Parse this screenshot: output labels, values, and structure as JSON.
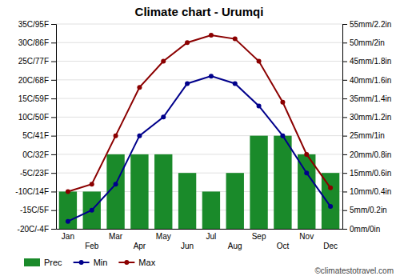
{
  "chart_data": {
    "type": "bar",
    "title": "Climate chart - Urumqi",
    "categories": [
      "Jan",
      "Feb",
      "Mar",
      "Apr",
      "May",
      "Jun",
      "Jul",
      "Aug",
      "Sep",
      "Oct",
      "Nov",
      "Dec"
    ],
    "series": [
      {
        "name": "Prec",
        "type": "bar",
        "axis": "y2",
        "color": "#1a8a2a",
        "values": [
          10,
          10,
          20,
          20,
          20,
          15,
          10,
          15,
          25,
          25,
          20,
          15
        ]
      },
      {
        "name": "Min",
        "type": "line",
        "marker": "circle",
        "color": "#00008b",
        "values": [
          -18,
          -15,
          -8,
          5,
          10,
          19,
          21,
          19,
          13,
          5,
          -5,
          -14
        ]
      },
      {
        "name": "Max",
        "type": "line",
        "marker": "circle",
        "color": "#8b0000",
        "values": [
          -10,
          -8,
          5,
          18,
          25,
          30,
          32,
          31,
          25,
          14,
          0,
          -9
        ]
      }
    ],
    "ylim": [
      -20,
      35
    ],
    "yticks": [
      {
        "value": -20,
        "label": "-20C/-4F"
      },
      {
        "value": -15,
        "label": "-15C/5F"
      },
      {
        "value": -10,
        "label": "-10C/14F"
      },
      {
        "value": -5,
        "label": "-5C/23F"
      },
      {
        "value": 0,
        "label": "0C/32F"
      },
      {
        "value": 5,
        "label": "5C/41F"
      },
      {
        "value": 10,
        "label": "10C/50F"
      },
      {
        "value": 15,
        "label": "15C/59F"
      },
      {
        "value": 20,
        "label": "20C/68F"
      },
      {
        "value": 25,
        "label": "25C/77F"
      },
      {
        "value": 30,
        "label": "30C/86F"
      },
      {
        "value": 35,
        "label": "35C/95F"
      }
    ],
    "y2lim": [
      0,
      55
    ],
    "y2ticks": [
      {
        "value": 0,
        "label": "0mm/0in"
      },
      {
        "value": 5,
        "label": "5mm/0.2in"
      },
      {
        "value": 10,
        "label": "10mm/0.4in"
      },
      {
        "value": 15,
        "label": "15mm/0.6in"
      },
      {
        "value": 20,
        "label": "20mm/0.8in"
      },
      {
        "value": 25,
        "label": "25mm/1in"
      },
      {
        "value": 30,
        "label": "30mm/1.2in"
      },
      {
        "value": 35,
        "label": "35mm/1.4in"
      },
      {
        "value": 40,
        "label": "40mm/1.6in"
      },
      {
        "value": 45,
        "label": "45mm/1.8in"
      },
      {
        "value": 50,
        "label": "50mm/2in"
      },
      {
        "value": 55,
        "label": "55mm/2.2in"
      }
    ],
    "grid": true,
    "legend": "bottom",
    "annotations": [
      {
        "text": "©climatestotravel.com"
      }
    ]
  }
}
